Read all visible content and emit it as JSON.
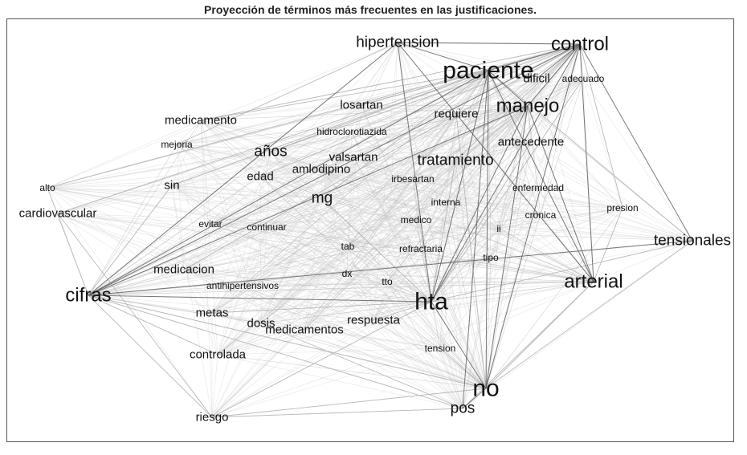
{
  "title": "Proyección de términos más frecuentes en las justificaciones.",
  "colors": {
    "edge_faint": "#d9d9d9",
    "edge_medium": "#b5b5b5",
    "edge_strong": "#555555",
    "text": "#111111",
    "frame": "#555555"
  },
  "chart_data": {
    "type": "network",
    "nodes": [
      {
        "id": "hipertension",
        "label": "hipertension",
        "weight": 3
      },
      {
        "id": "control",
        "label": "control",
        "weight": 4
      },
      {
        "id": "paciente",
        "label": "paciente",
        "weight": 5
      },
      {
        "id": "dificil",
        "label": "dificil",
        "weight": 2
      },
      {
        "id": "adecuado",
        "label": "adecuado",
        "weight": 1
      },
      {
        "id": "manejo",
        "label": "manejo",
        "weight": 4
      },
      {
        "id": "losartan",
        "label": "losartan",
        "weight": 2
      },
      {
        "id": "requiere",
        "label": "requiere",
        "weight": 2
      },
      {
        "id": "medicamento",
        "label": "medicamento",
        "weight": 2
      },
      {
        "id": "hidroclorotiazida",
        "label": "hidroclorotiazida",
        "weight": 1
      },
      {
        "id": "antecedente",
        "label": "antecedente",
        "weight": 2
      },
      {
        "id": "mejoria",
        "label": "mejoria",
        "weight": 1
      },
      {
        "id": "anos",
        "label": "años",
        "weight": 3
      },
      {
        "id": "valsartan",
        "label": "valsartan",
        "weight": 2
      },
      {
        "id": "tratamiento",
        "label": "tratamiento",
        "weight": 3
      },
      {
        "id": "amlodipino",
        "label": "amlodipino",
        "weight": 2
      },
      {
        "id": "edad",
        "label": "edad",
        "weight": 2
      },
      {
        "id": "irbesartan",
        "label": "irbesartan",
        "weight": 1
      },
      {
        "id": "alto",
        "label": "alto",
        "weight": 1
      },
      {
        "id": "sin",
        "label": "sin",
        "weight": 2
      },
      {
        "id": "enfermedad",
        "label": "enfermedad",
        "weight": 1
      },
      {
        "id": "mg",
        "label": "mg",
        "weight": 3
      },
      {
        "id": "interna",
        "label": "interna",
        "weight": 1
      },
      {
        "id": "presion",
        "label": "presion",
        "weight": 1
      },
      {
        "id": "cardiovascular",
        "label": "cardiovascular",
        "weight": 2
      },
      {
        "id": "cronica",
        "label": "cronica",
        "weight": 1
      },
      {
        "id": "medico",
        "label": "medico",
        "weight": 1
      },
      {
        "id": "evitar",
        "label": "evitar",
        "weight": 1
      },
      {
        "id": "continuar",
        "label": "continuar",
        "weight": 1
      },
      {
        "id": "ii",
        "label": "ii",
        "weight": 1
      },
      {
        "id": "tensionales",
        "label": "tensionales",
        "weight": 3
      },
      {
        "id": "tab",
        "label": "tab",
        "weight": 1
      },
      {
        "id": "refractaria",
        "label": "refractaria",
        "weight": 1
      },
      {
        "id": "tipo",
        "label": "tipo",
        "weight": 1
      },
      {
        "id": "medicacion",
        "label": "medicacion",
        "weight": 2
      },
      {
        "id": "dx",
        "label": "dx",
        "weight": 1
      },
      {
        "id": "arterial",
        "label": "arterial",
        "weight": 4
      },
      {
        "id": "antihipertensivos",
        "label": "antihipertensivos",
        "weight": 1
      },
      {
        "id": "tto",
        "label": "tto",
        "weight": 1
      },
      {
        "id": "cifras",
        "label": "cifras",
        "weight": 4
      },
      {
        "id": "hta",
        "label": "hta",
        "weight": 5
      },
      {
        "id": "metas",
        "label": "metas",
        "weight": 2
      },
      {
        "id": "respuesta",
        "label": "respuesta",
        "weight": 2
      },
      {
        "id": "dosis",
        "label": "dosis",
        "weight": 2
      },
      {
        "id": "medicamentos",
        "label": "medicamentos",
        "weight": 2
      },
      {
        "id": "controlada",
        "label": "controlada",
        "weight": 2
      },
      {
        "id": "tension",
        "label": "tension",
        "weight": 1
      },
      {
        "id": "no",
        "label": "no",
        "weight": 5
      },
      {
        "id": "pos",
        "label": "pos",
        "weight": 3
      },
      {
        "id": "riesgo",
        "label": "riesgo",
        "weight": 2
      }
    ],
    "strong_edges": [
      [
        "paciente",
        "hta"
      ],
      [
        "paciente",
        "no"
      ],
      [
        "paciente",
        "cifras"
      ],
      [
        "paciente",
        "arterial"
      ],
      [
        "paciente",
        "control"
      ],
      [
        "paciente",
        "hipertension"
      ],
      [
        "paciente",
        "manejo"
      ],
      [
        "control",
        "hta"
      ],
      [
        "control",
        "no"
      ],
      [
        "control",
        "cifras"
      ],
      [
        "control",
        "tensionales"
      ],
      [
        "control",
        "hipertension"
      ],
      [
        "control",
        "arterial"
      ],
      [
        "control",
        "manejo"
      ],
      [
        "hipertension",
        "arterial"
      ],
      [
        "hipertension",
        "hta"
      ],
      [
        "hipertension",
        "cifras"
      ],
      [
        "cifras",
        "tensionales"
      ],
      [
        "cifras",
        "hta"
      ],
      [
        "cifras",
        "manejo"
      ],
      [
        "hta",
        "no"
      ],
      [
        "hta",
        "manejo"
      ],
      [
        "no",
        "pos"
      ],
      [
        "no",
        "manejo"
      ],
      [
        "arterial",
        "manejo"
      ],
      [
        "paciente",
        "pos"
      ],
      [
        "dificil",
        "control"
      ]
    ],
    "medium_edges": [
      [
        "medicamento",
        "paciente"
      ],
      [
        "medicamento",
        "control"
      ],
      [
        "anos",
        "paciente"
      ],
      [
        "anos",
        "control"
      ],
      [
        "mg",
        "paciente"
      ],
      [
        "mg",
        "hta"
      ],
      [
        "tratamiento",
        "hta"
      ],
      [
        "tratamiento",
        "control"
      ],
      [
        "riesgo",
        "cifras"
      ],
      [
        "riesgo",
        "hta"
      ],
      [
        "riesgo",
        "no"
      ],
      [
        "controlada",
        "cifras"
      ],
      [
        "metas",
        "hta"
      ],
      [
        "respuesta",
        "hta"
      ],
      [
        "tensionales",
        "hta"
      ],
      [
        "tensionales",
        "no"
      ],
      [
        "tensionales",
        "paciente"
      ],
      [
        "arterial",
        "no"
      ],
      [
        "arterial",
        "pos"
      ],
      [
        "sin",
        "paciente"
      ],
      [
        "sin",
        "cifras"
      ],
      [
        "alto",
        "cifras"
      ],
      [
        "alto",
        "control"
      ],
      [
        "cardiovascular",
        "riesgo"
      ],
      [
        "cardiovascular",
        "paciente"
      ],
      [
        "losartan",
        "control"
      ],
      [
        "antecedente",
        "hta"
      ],
      [
        "requiere",
        "no"
      ],
      [
        "presion",
        "control"
      ],
      [
        "presion",
        "arterial"
      ],
      [
        "mejoria",
        "hipertension"
      ],
      [
        "edad",
        "control"
      ],
      [
        "medicacion",
        "control"
      ],
      [
        "hipertension",
        "control"
      ],
      [
        "adecuado",
        "hta"
      ],
      [
        "dosis",
        "pos"
      ],
      [
        "tension",
        "no"
      ],
      [
        "cifras",
        "pos"
      ],
      [
        "cifras",
        "no"
      ],
      [
        "riesgo",
        "pos"
      ]
    ]
  }
}
